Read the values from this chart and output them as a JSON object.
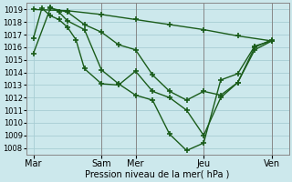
{
  "background_color": "#cce8ec",
  "grid_color": "#a8cdd4",
  "line_color": "#1a5c1a",
  "marker_color": "#1a5c1a",
  "xlabel": "Pression niveau de la mer( hPa )",
  "ylim": [
    1007.5,
    1019.5
  ],
  "yticks": [
    1008,
    1009,
    1010,
    1011,
    1012,
    1013,
    1014,
    1015,
    1016,
    1017,
    1018,
    1019
  ],
  "day_labels": [
    "Mar",
    "Sam",
    "Mer",
    "Jeu",
    "Ven"
  ],
  "day_positions": [
    0,
    48,
    72,
    120,
    168
  ],
  "xlim": [
    -5,
    180
  ],
  "series": [
    {
      "x": [
        0,
        12,
        24,
        36,
        48,
        60,
        72,
        84,
        96,
        108,
        120,
        132,
        144,
        156,
        168
      ],
      "y": [
        1015.5,
        1019.1,
        1018.8,
        1017.8,
        1017.2,
        1016.2,
        1015.8,
        1013.8,
        1012.5,
        1011.8,
        1012.5,
        1012.2,
        1013.2,
        1015.8,
        1016.5
      ],
      "marker": "+",
      "markersize": 5,
      "lw": 1.0
    },
    {
      "x": [
        0,
        24,
        48,
        72,
        96,
        120,
        144,
        168
      ],
      "y": [
        1019.0,
        1018.9,
        1018.6,
        1018.2,
        1017.8,
        1017.4,
        1016.9,
        1016.5
      ],
      "marker": "+",
      "markersize": 5,
      "lw": 1.0
    },
    {
      "x": [
        0,
        6,
        12,
        18,
        24,
        30,
        36,
        48,
        60,
        72,
        84,
        96,
        108,
        120,
        132,
        144,
        156,
        168
      ],
      "y": [
        1016.7,
        1019.1,
        1018.5,
        1018.2,
        1017.6,
        1016.6,
        1014.3,
        1013.1,
        1013.0,
        1014.1,
        1012.5,
        1012.0,
        1011.0,
        1009.0,
        1012.0,
        1013.2,
        1016.0,
        1016.6
      ],
      "marker": "+",
      "markersize": 5,
      "lw": 1.0
    },
    {
      "x": [
        12,
        18,
        24,
        36,
        48,
        60,
        72,
        84,
        96,
        108,
        120,
        132,
        144,
        156,
        168
      ],
      "y": [
        1019.2,
        1018.8,
        1018.1,
        1017.4,
        1014.2,
        1013.1,
        1012.2,
        1011.8,
        1009.1,
        1007.8,
        1008.4,
        1013.4,
        1013.9,
        1016.1,
        1016.5
      ],
      "marker": "+",
      "markersize": 5,
      "lw": 1.0
    }
  ],
  "vline_positions": [
    48,
    72,
    120,
    168
  ],
  "vline_color": "#888888"
}
